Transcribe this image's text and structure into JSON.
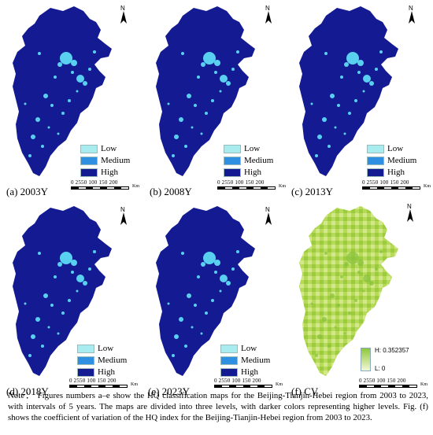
{
  "panels": [
    {
      "caption": "(a) 2003Y"
    },
    {
      "caption": "(b) 2008Y"
    },
    {
      "caption": "(c) 2013Y"
    },
    {
      "caption": "(d) 2018Y"
    },
    {
      "caption": "(e) 2023Y"
    },
    {
      "caption": "(f) CV"
    }
  ],
  "legend": {
    "items": [
      {
        "label": "Low",
        "color": "#a8ecf0"
      },
      {
        "label": "Medium",
        "color": "#2f8fe0"
      },
      {
        "label": "High",
        "color": "#131a92"
      }
    ]
  },
  "scalebar": {
    "numbers": "0 2550  100 150 200",
    "unit": "Km"
  },
  "north_label": "N",
  "cv_legend": {
    "high": "H:  0.352357",
    "low": "L:  0"
  },
  "note": "Note： Figures numbers a–e show the HQ classification maps for the Beijing-Tianjin-Hebei region from 2003 to 2023, with intervals of 5 years. The maps are divided into three levels, with darker colors representing higher levels. Fig. (f) shows the coefficient of variation of the HQ index for the Beijing-Tianjin-Hebei region from 2003 to 2023."
}
